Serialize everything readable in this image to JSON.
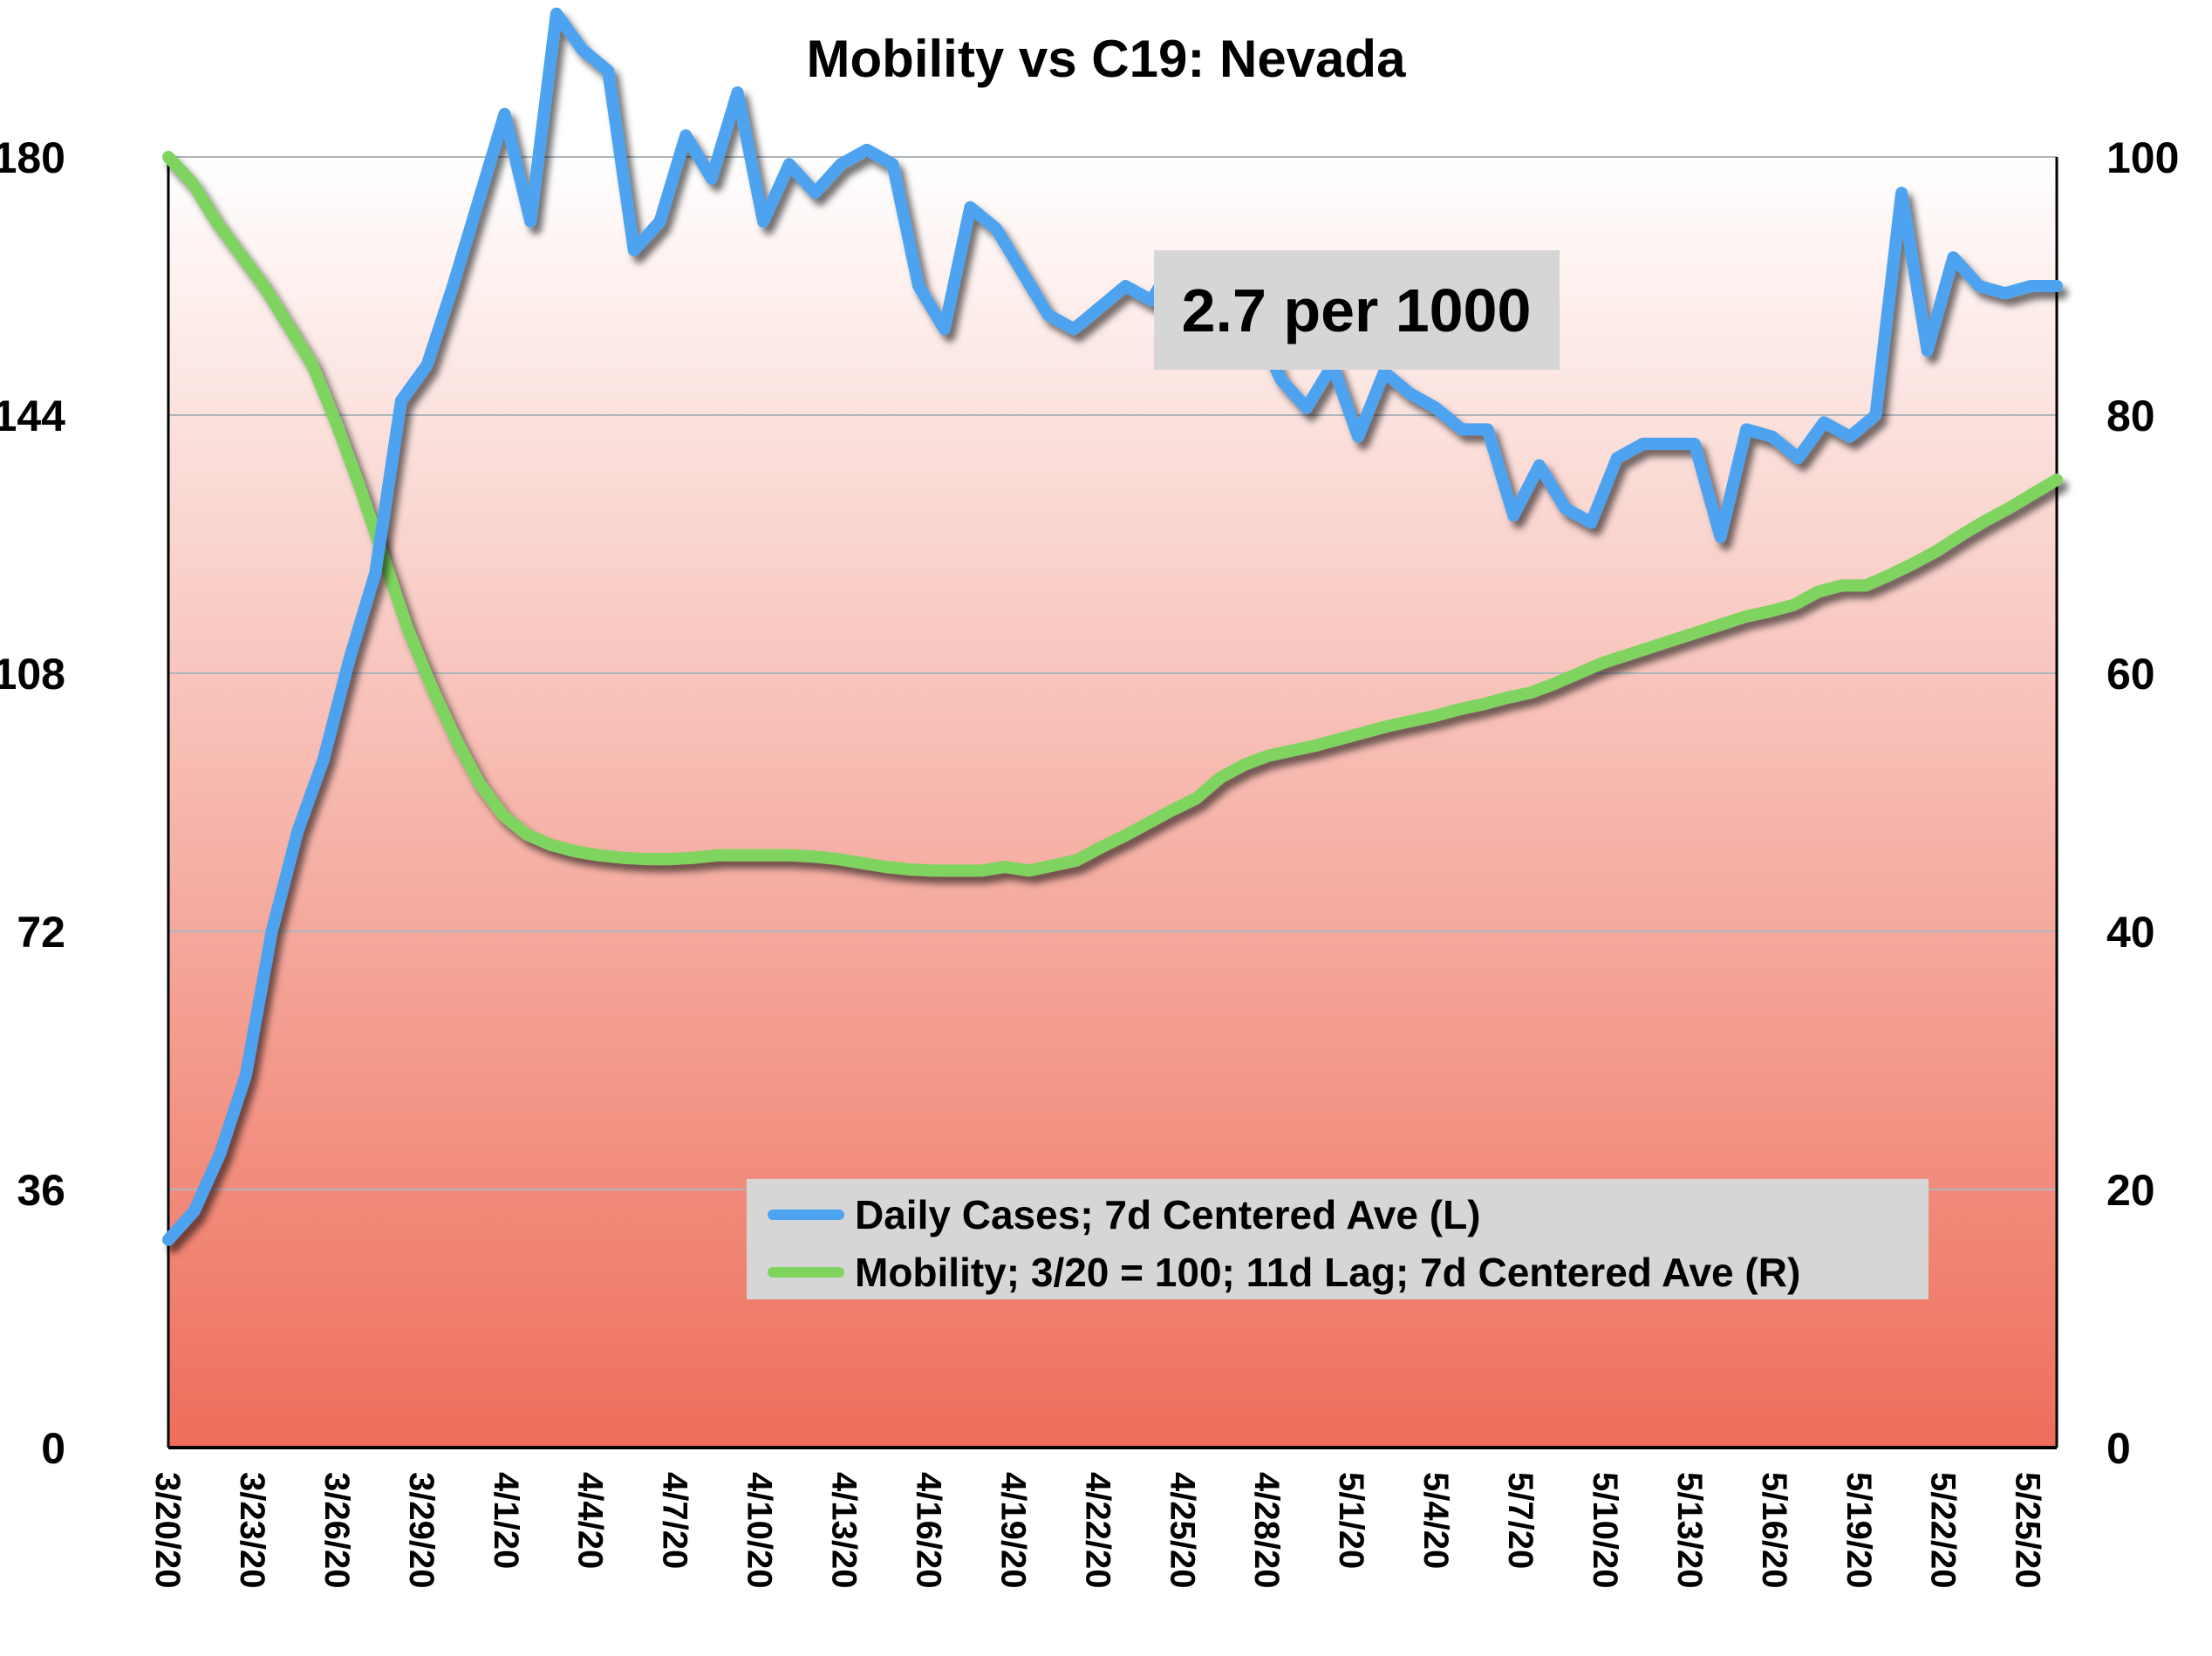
{
  "chart_data": {
    "type": "line",
    "title": "Mobility vs C19: Nevada",
    "annotation": "2.7 per 1000",
    "x_tick_labels": [
      "3/20/20",
      "3/23/20",
      "3/26/20",
      "3/29/20",
      "4/1/20",
      "4/4/20",
      "4/7/20",
      "4/10/20",
      "4/13/20",
      "4/16/20",
      "4/19/20",
      "4/22/20",
      "4/25/20",
      "4/28/20",
      "5/1/20",
      "5/4/20",
      "5/7/20",
      "5/10/20",
      "5/13/20",
      "5/16/20",
      "5/19/20",
      "5/22/20",
      "5/25/20"
    ],
    "x_start": "3/20/20",
    "x_end": "5/26/20",
    "y_left": {
      "ticks": [
        0,
        36,
        72,
        108,
        144,
        180
      ],
      "lim": [
        0,
        180
      ]
    },
    "y_right": {
      "ticks": [
        0,
        20,
        40,
        60,
        80,
        100
      ],
      "lim": [
        0,
        100
      ]
    },
    "grid": true,
    "background": {
      "top": "#ffffff",
      "bottom": "#ee6e5a"
    },
    "legend_position": "bottom-right",
    "series": [
      {
        "name": "Daily Cases; 7d Centered Ave (L)",
        "axis": "left",
        "color": "#4da3f0",
        "values": [
          29,
          33,
          41,
          52,
          72,
          86,
          96,
          110,
          122,
          146,
          151,
          162,
          174,
          186,
          171,
          200,
          195,
          192,
          167,
          171,
          183,
          177,
          189,
          171,
          179,
          175,
          179,
          181,
          179,
          162,
          156,
          173,
          170,
          164,
          158,
          156,
          159,
          162,
          160,
          166,
          158,
          156,
          157,
          149,
          145,
          151,
          141,
          150,
          147,
          145,
          142,
          142,
          130,
          137,
          131,
          129,
          138,
          140,
          140,
          140,
          127,
          142,
          141,
          138,
          143,
          141,
          144,
          175,
          153,
          166,
          162,
          161,
          162,
          162
        ]
      },
      {
        "name": "Mobility; 3/20 = 100; 11d Lag; 7d Centered Ave (R)",
        "axis": "right",
        "color": "#7fd45f",
        "values": [
          100,
          98,
          95,
          92.5,
          90,
          87,
          84,
          79.5,
          74.5,
          69,
          63.5,
          59,
          55,
          51.5,
          49,
          47.5,
          46.7,
          46.2,
          45.9,
          45.7,
          45.6,
          45.6,
          45.7,
          45.9,
          45.9,
          45.9,
          45.9,
          45.8,
          45.6,
          45.3,
          45,
          44.8,
          44.7,
          44.7,
          44.7,
          45,
          44.7,
          45.1,
          45.5,
          46.5,
          47.4,
          48.4,
          49.4,
          50.3,
          51.9,
          52.9,
          53.6,
          54,
          54.4,
          54.9,
          55.4,
          55.9,
          56.3,
          56.7,
          57.2,
          57.6,
          58.1,
          58.5,
          59.2,
          60,
          60.8,
          61.4,
          62,
          62.6,
          63.2,
          63.8,
          64.4,
          64.8,
          65.3,
          66.3,
          66.8,
          66.8,
          67.6,
          68.5,
          69.5,
          70.7,
          71.8,
          72.8,
          73.9,
          75
        ]
      }
    ]
  }
}
